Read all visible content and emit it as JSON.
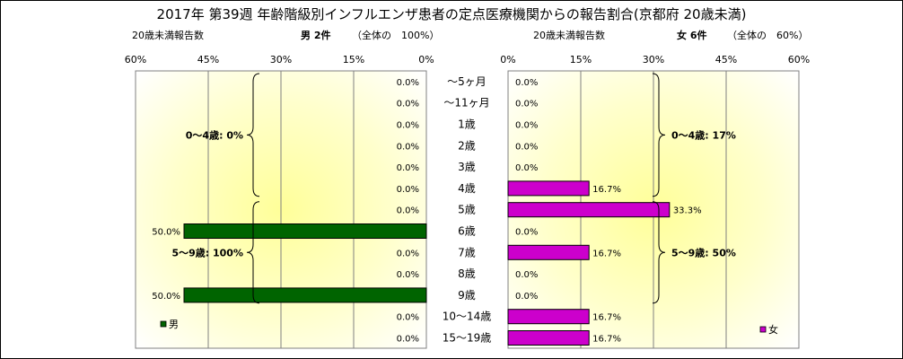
{
  "chart_data": {
    "type": "bar",
    "title": "2017年 第39週 年齢階級別インフルエンザ患者の定点医療機関からの報告割合(京都府 20歳未満)",
    "categories": [
      "～5ヶ月",
      "～11ヶ月",
      "1歳",
      "2歳",
      "3歳",
      "4歳",
      "5歳",
      "6歳",
      "7歳",
      "8歳",
      "9歳",
      "10～14歳",
      "15～19歳"
    ],
    "xlim": [
      0,
      60
    ],
    "ticks": [
      "0%",
      "15%",
      "30%",
      "45%",
      "60%"
    ],
    "grid": true,
    "panels": {
      "male": {
        "label": "20歳未満報告数",
        "heading": "男 2件",
        "share": "（全体の　100%）",
        "legend": "男",
        "color": "#006400",
        "values": [
          0.0,
          0.0,
          0.0,
          0.0,
          0.0,
          0.0,
          0.0,
          50.0,
          0.0,
          0.0,
          50.0,
          0.0,
          0.0
        ],
        "value_labels": [
          "0.0%",
          "0.0%",
          "0.0%",
          "0.0%",
          "0.0%",
          "0.0%",
          "0.0%",
          "50.0%",
          "0.0%",
          "0.0%",
          "50.0%",
          "0.0%",
          "0.0%"
        ],
        "groups": [
          {
            "label": "0～4歳: 0%",
            "from": 0,
            "to": 5
          },
          {
            "label": "5～9歳: 100%",
            "from": 6,
            "to": 10
          }
        ]
      },
      "female": {
        "label": "20歳未満報告数",
        "heading": "女 6件",
        "share": "（全体の　60%）",
        "legend": "女",
        "color": "#cc00cc",
        "values": [
          0.0,
          0.0,
          0.0,
          0.0,
          0.0,
          16.7,
          33.3,
          0.0,
          16.7,
          0.0,
          0.0,
          16.7,
          16.7
        ],
        "value_labels": [
          "0.0%",
          "0.0%",
          "0.0%",
          "0.0%",
          "0.0%",
          "16.7%",
          "33.3%",
          "0.0%",
          "16.7%",
          "0.0%",
          "0.0%",
          "16.7%",
          "16.7%"
        ],
        "groups": [
          {
            "label": "0～4歳: 17%",
            "from": 0,
            "to": 5
          },
          {
            "label": "5～9歳: 50%",
            "from": 6,
            "to": 10
          }
        ]
      }
    }
  }
}
